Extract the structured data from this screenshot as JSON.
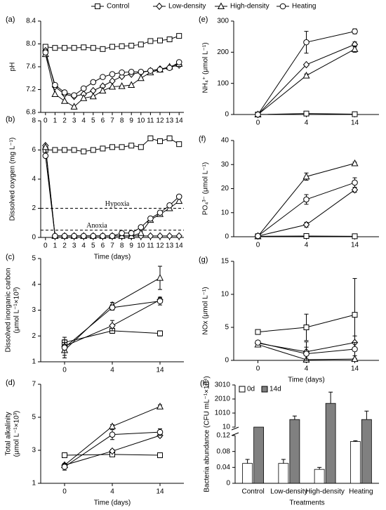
{
  "chart_data": [
    {
      "type": "line",
      "panel": "(a)",
      "ylabel": "pH",
      "color": "#000000",
      "x": [
        0,
        1,
        2,
        3,
        4,
        5,
        6,
        7,
        8,
        9,
        10,
        11,
        12,
        13,
        14
      ],
      "xlim": [
        -0.5,
        14.5
      ],
      "xticks": [
        0,
        1,
        2,
        3,
        4,
        5,
        6,
        7,
        8,
        9,
        10,
        11,
        12,
        13,
        14
      ],
      "ylim": [
        6.8,
        8.4
      ],
      "yticks": [
        6.8,
        7.2,
        7.6,
        {
          "value": 8,
          "label": "8.0"
        },
        8.4
      ],
      "series": [
        {
          "name": "Control",
          "marker": "square",
          "values": [
            7.95,
            7.93,
            7.93,
            7.93,
            7.94,
            7.93,
            7.91,
            7.95,
            7.96,
            7.97,
            7.99,
            8.05,
            8.06,
            8.08,
            8.14
          ]
        },
        {
          "name": "Low-density",
          "marker": "diamond",
          "values": [
            7.88,
            7.25,
            7.12,
            7.08,
            7.12,
            7.18,
            7.26,
            7.35,
            7.43,
            7.47,
            7.5,
            7.53,
            7.56,
            7.59,
            7.63
          ]
        },
        {
          "name": "High-density",
          "marker": "triangle",
          "values": [
            7.82,
            7.12,
            7.0,
            6.9,
            7.05,
            7.08,
            7.18,
            7.25,
            7.26,
            7.28,
            7.4,
            7.5,
            7.55,
            7.6,
            7.65
          ]
        },
        {
          "name": "Heating",
          "marker": "circle",
          "values": [
            7.85,
            7.28,
            7.15,
            7.1,
            7.22,
            7.33,
            7.42,
            7.47,
            7.5,
            7.51,
            7.51,
            7.53,
            7.55,
            7.58,
            7.68
          ]
        }
      ]
    },
    {
      "type": "line",
      "panel": "(b)",
      "ylabel": "Dissolved oxygen (mg L⁻¹)",
      "xlabel": "Time (days)",
      "color": "#000000",
      "x": [
        0,
        1,
        2,
        3,
        4,
        5,
        6,
        7,
        8,
        9,
        10,
        11,
        12,
        13,
        14
      ],
      "xlim": [
        -0.5,
        14.5
      ],
      "xticks": [
        0,
        1,
        2,
        3,
        4,
        5,
        6,
        7,
        8,
        9,
        10,
        11,
        12,
        13,
        14
      ],
      "ylim": [
        0,
        8
      ],
      "yticks": [
        0,
        2,
        4,
        6,
        8
      ],
      "reference_lines": [
        {
          "value": 2,
          "label": "Hypoxia"
        },
        {
          "value": 0.5,
          "label": "Anoxia"
        }
      ],
      "series": [
        {
          "marker": "square",
          "values": [
            6.0,
            6.0,
            6.0,
            6.0,
            5.9,
            6.0,
            6.1,
            6.2,
            6.2,
            6.3,
            6.2,
            6.8,
            6.6,
            6.8,
            6.4
          ]
        },
        {
          "marker": "diamond",
          "values": [
            6.3,
            0.1,
            0.1,
            0.1,
            0.1,
            0.1,
            0.1,
            0.1,
            0.1,
            0.1,
            0.1,
            0.1,
            0.1,
            0.1,
            0.1
          ]
        },
        {
          "marker": "triangle",
          "values": [
            6.2,
            0.1,
            0.1,
            0.1,
            0.1,
            0.1,
            0.1,
            0.1,
            0.1,
            0.1,
            0.3,
            1.2,
            1.6,
            2.0,
            2.5
          ]
        },
        {
          "marker": "circle",
          "values": [
            5.6,
            0.1,
            0.1,
            0.1,
            0.1,
            0.1,
            0.1,
            0.1,
            0.3,
            0.3,
            0.7,
            1.3,
            1.7,
            2.2,
            2.8
          ]
        }
      ]
    },
    {
      "type": "line",
      "panel": "(c)",
      "ylabel": [
        "Dissolved inorganic carbon",
        "(μmol L⁻¹×10³)"
      ],
      "color": "#000000",
      "categories": [
        "0",
        "4",
        "14"
      ],
      "ylim": [
        1,
        5
      ],
      "yticks": [
        1,
        2,
        3,
        4,
        5
      ],
      "series": [
        {
          "marker": "square",
          "values": [
            1.75,
            2.2,
            2.1
          ],
          "errors": [
            0.1,
            0.1,
            0.1
          ]
        },
        {
          "marker": "diamond",
          "values": [
            1.6,
            2.4,
            3.4
          ],
          "errors": [
            0.15,
            0.2,
            0.1
          ]
        },
        {
          "marker": "triangle",
          "values": [
            1.45,
            3.2,
            4.25
          ],
          "errors": [
            0.2,
            0.1,
            0.45
          ]
        },
        {
          "marker": "circle",
          "values": [
            1.55,
            3.1,
            3.35
          ],
          "errors": [
            0.4,
            0.1,
            0.15
          ]
        }
      ]
    },
    {
      "type": "line",
      "panel": "(d)",
      "ylabel": [
        "Total alkalinity",
        "(μmol L⁻¹×10³)"
      ],
      "xlabel": "Time (days)",
      "color": "#000000",
      "categories": [
        "0",
        "4",
        "14"
      ],
      "ylim": [
        1,
        7
      ],
      "yticks": [
        1,
        3,
        5,
        7
      ],
      "series": [
        {
          "marker": "square",
          "values": [
            2.7,
            2.75,
            2.7
          ],
          "errors": [
            0.1,
            0.1,
            0.1
          ]
        },
        {
          "marker": "diamond",
          "values": [
            2.1,
            2.95,
            3.9
          ],
          "errors": [
            0.1,
            0.1,
            0.1
          ]
        },
        {
          "marker": "triangle",
          "values": [
            2.1,
            4.45,
            5.65
          ],
          "errors": [
            0.1,
            0.1,
            0.1
          ]
        },
        {
          "marker": "circle",
          "values": [
            2.0,
            3.95,
            4.1
          ],
          "errors": [
            0.2,
            0.3,
            0.2
          ]
        }
      ]
    },
    {
      "type": "line",
      "panel": "(e)",
      "ylabel": "NH₄⁺ (μmol L⁻¹)",
      "color": "#000000",
      "categories": [
        "0",
        "4",
        "14"
      ],
      "ylim": [
        0,
        300
      ],
      "yticks": [
        0,
        100,
        200,
        300
      ],
      "series": [
        {
          "marker": "square",
          "values": [
            0,
            3,
            1
          ],
          "errors": [
            0,
            0,
            0
          ]
        },
        {
          "marker": "diamond",
          "values": [
            0,
            160,
            225
          ],
          "errors": [
            2,
            3,
            8
          ]
        },
        {
          "marker": "triangle",
          "values": [
            0,
            125,
            210
          ],
          "errors": [
            0,
            5,
            10
          ]
        },
        {
          "marker": "circle",
          "values": [
            0,
            232,
            267
          ],
          "errors": [
            0,
            35,
            8
          ]
        }
      ]
    },
    {
      "type": "line",
      "panel": "(f)",
      "ylabel": "PO₄³⁻ (μmol L⁻¹)",
      "color": "#000000",
      "categories": [
        "0",
        "4",
        "14"
      ],
      "ylim": [
        0,
        40
      ],
      "yticks": [
        0,
        10,
        20,
        30,
        40
      ],
      "series": [
        {
          "marker": "square",
          "values": [
            0.2,
            0.3,
            0.2
          ],
          "errors": [
            0,
            0,
            0
          ]
        },
        {
          "marker": "diamond",
          "values": [
            0.3,
            5,
            19.5
          ],
          "errors": [
            0.1,
            1,
            1
          ]
        },
        {
          "marker": "triangle",
          "values": [
            0.2,
            25,
            30.5
          ],
          "errors": [
            0.1,
            1.5,
            0.5
          ]
        },
        {
          "marker": "circle",
          "values": [
            0.3,
            15.5,
            22.5
          ],
          "errors": [
            0.1,
            2,
            2
          ]
        }
      ]
    },
    {
      "type": "line",
      "panel": "(g)",
      "ylabel": "NOx (μmol L⁻¹)",
      "xlabel": "Time (days)",
      "color": "#000000",
      "categories": [
        "0",
        "4",
        "14"
      ],
      "ylim": [
        0,
        15
      ],
      "yticks": [
        0,
        5,
        10,
        15
      ],
      "series": [
        {
          "marker": "square",
          "values": [
            4.3,
            5.0,
            6.9
          ],
          "errors": [
            0.3,
            2,
            5.5
          ]
        },
        {
          "marker": "diamond",
          "values": [
            2.6,
            1.3,
            2.7
          ],
          "errors": [
            0.3,
            1.5,
            1
          ]
        },
        {
          "marker": "triangle",
          "values": [
            2.4,
            0.1,
            0.2
          ],
          "errors": [
            0.2,
            0.1,
            0.1
          ]
        },
        {
          "marker": "circle",
          "values": [
            2.7,
            1.0,
            1.7
          ],
          "errors": [
            0.3,
            1,
            1
          ]
        }
      ]
    },
    {
      "type": "bar",
      "panel": "(h)",
      "ylabel": "Bacteria abundance (CFU mL⁻¹×10⁴)",
      "xlabel": "Treatments",
      "categories": [
        "Control",
        "Low-density",
        "High-density",
        "Heating"
      ],
      "ylim": [
        0,
        0.12
      ],
      "yticks": [
        0,
        0.04,
        0.08,
        0.12
      ],
      "ylim_upper": [
        10,
        3010
      ],
      "yticks_upper": [
        10,
        1010,
        2010,
        3010
      ],
      "series": [
        {
          "name": "0d",
          "color": "#ffffff",
          "values": [
            0.05,
            0.05,
            0.035,
            0.105
          ],
          "errors": [
            0.01,
            0.01,
            0.005,
            0.002
          ]
        },
        {
          "name": "14d",
          "color": "#808080",
          "values": [
            10,
            550,
            1700,
            550
          ],
          "errors": [
            0,
            250,
            800,
            600
          ]
        }
      ]
    }
  ]
}
